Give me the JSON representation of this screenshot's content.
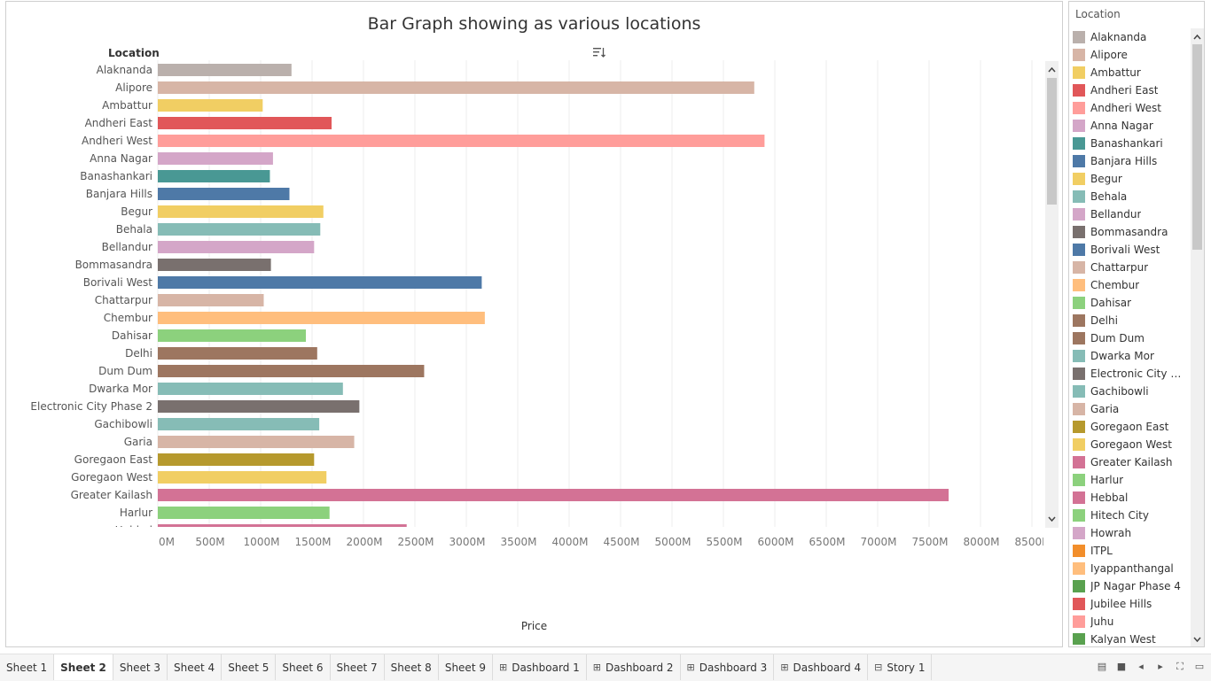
{
  "chart_data": {
    "type": "bar",
    "orientation": "horizontal",
    "title": "Bar Graph showing as various locations",
    "ylabel": "Location",
    "xlabel": "Price",
    "xlim": [
      0,
      8500
    ],
    "x_unit": "M",
    "x_ticks": [
      "0M",
      "500M",
      "1000M",
      "1500M",
      "2000M",
      "2500M",
      "3000M",
      "3500M",
      "4000M",
      "4500M",
      "5000M",
      "5500M",
      "6000M",
      "6500M",
      "7000M",
      "7500M",
      "8000M",
      "8500M"
    ],
    "grid": true,
    "categories": [
      "Alaknanda",
      "Alipore",
      "Ambattur",
      "Andheri East",
      "Andheri West",
      "Anna Nagar",
      "Banashankari",
      "Banjara Hills",
      "Begur",
      "Behala",
      "Bellandur",
      "Bommasandra",
      "Borivali West",
      "Chattarpur",
      "Chembur",
      "Dahisar",
      "Delhi",
      "Dum Dum",
      "Dwarka Mor",
      "Electronic City Phase 2",
      "Gachibowli",
      "Garia",
      "Goregaon East",
      "Goregaon West",
      "Greater Kailash",
      "Harlur",
      "Hebbal"
    ],
    "values": [
      1300,
      5800,
      1020,
      1690,
      5900,
      1120,
      1090,
      1280,
      1610,
      1580,
      1520,
      1100,
      3150,
      1030,
      3180,
      1440,
      1550,
      2590,
      1800,
      1960,
      1570,
      1910,
      1520,
      1640,
      7690,
      1670,
      2420
    ],
    "colors": [
      "#bab0ac",
      "#d7b5a6",
      "#f1ce63",
      "#e15759",
      "#ff9d9a",
      "#d4a6c8",
      "#499894",
      "#4e79a7",
      "#f1ce63",
      "#86bcb6",
      "#d4a6c8",
      "#79706e",
      "#4e79a7",
      "#d7b5a6",
      "#ffbe7d",
      "#8cd17d",
      "#9d7660",
      "#9d7660",
      "#86bcb6",
      "#79706e",
      "#86bcb6",
      "#d7b5a6",
      "#b6992d",
      "#f1ce63",
      "#d37295",
      "#8cd17d",
      "#d37295"
    ]
  },
  "legend": {
    "title": "Location",
    "items": [
      {
        "label": "Alaknanda",
        "color": "#bab0ac"
      },
      {
        "label": "Alipore",
        "color": "#d7b5a6"
      },
      {
        "label": "Ambattur",
        "color": "#f1ce63"
      },
      {
        "label": "Andheri East",
        "color": "#e15759"
      },
      {
        "label": "Andheri West",
        "color": "#ff9d9a"
      },
      {
        "label": "Anna Nagar",
        "color": "#d4a6c8"
      },
      {
        "label": "Banashankari",
        "color": "#499894"
      },
      {
        "label": "Banjara Hills",
        "color": "#4e79a7"
      },
      {
        "label": "Begur",
        "color": "#f1ce63"
      },
      {
        "label": "Behala",
        "color": "#86bcb6"
      },
      {
        "label": "Bellandur",
        "color": "#d4a6c8"
      },
      {
        "label": "Bommasandra",
        "color": "#79706e"
      },
      {
        "label": "Borivali West",
        "color": "#4e79a7"
      },
      {
        "label": "Chattarpur",
        "color": "#d7b5a6"
      },
      {
        "label": "Chembur",
        "color": "#ffbe7d"
      },
      {
        "label": "Dahisar",
        "color": "#8cd17d"
      },
      {
        "label": "Delhi",
        "color": "#9d7660"
      },
      {
        "label": "Dum Dum",
        "color": "#9d7660"
      },
      {
        "label": "Dwarka Mor",
        "color": "#86bcb6"
      },
      {
        "label": "Electronic City Ph..",
        "color": "#79706e"
      },
      {
        "label": "Gachibowli",
        "color": "#86bcb6"
      },
      {
        "label": "Garia",
        "color": "#d7b5a6"
      },
      {
        "label": "Goregaon East",
        "color": "#b6992d"
      },
      {
        "label": "Goregaon West",
        "color": "#f1ce63"
      },
      {
        "label": "Greater Kailash",
        "color": "#d37295"
      },
      {
        "label": "Harlur",
        "color": "#8cd17d"
      },
      {
        "label": "Hebbal",
        "color": "#d37295"
      },
      {
        "label": "Hitech City",
        "color": "#8cd17d"
      },
      {
        "label": "Howrah",
        "color": "#d4a6c8"
      },
      {
        "label": "ITPL",
        "color": "#f28e2b"
      },
      {
        "label": "Iyappanthangal",
        "color": "#ffbe7d"
      },
      {
        "label": "JP Nagar Phase 4",
        "color": "#59a14f"
      },
      {
        "label": "Jubilee Hills",
        "color": "#e15759"
      },
      {
        "label": "Juhu",
        "color": "#ff9d9a"
      },
      {
        "label": "Kalyan West",
        "color": "#59a14f"
      }
    ]
  },
  "tabs": [
    {
      "label": "Sheet 1",
      "icon": ""
    },
    {
      "label": "Sheet 2",
      "icon": "",
      "active": true
    },
    {
      "label": "Sheet 3",
      "icon": ""
    },
    {
      "label": "Sheet 4",
      "icon": ""
    },
    {
      "label": "Sheet 5",
      "icon": ""
    },
    {
      "label": "Sheet 6",
      "icon": ""
    },
    {
      "label": "Sheet 7",
      "icon": ""
    },
    {
      "label": "Sheet 8",
      "icon": ""
    },
    {
      "label": "Sheet 9",
      "icon": ""
    },
    {
      "label": "Dashboard 1",
      "icon": "grid-icon"
    },
    {
      "label": "Dashboard 2",
      "icon": "grid-icon"
    },
    {
      "label": "Dashboard 3",
      "icon": "grid-icon"
    },
    {
      "label": "Dashboard 4",
      "icon": "grid-icon"
    },
    {
      "label": "Story 1",
      "icon": "book-icon"
    }
  ],
  "controls": [
    "filmstrip-icon",
    "grid-view-icon",
    "prev-icon",
    "next-icon",
    "fullscreen-icon",
    "present-icon"
  ]
}
